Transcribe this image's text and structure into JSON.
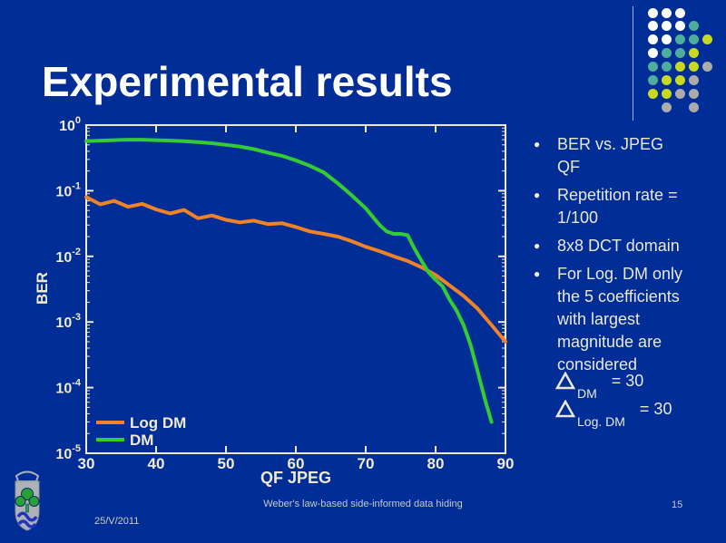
{
  "title": "Experimental results",
  "decoration": {
    "grid": [
      "WWW..",
      "WWWT.",
      "WWTTY",
      "WTTY.",
      "TTYYG",
      "TYYG.",
      "YYGG.",
      ".G.G."
    ],
    "colors": {
      "W": "#FFFFFF",
      "T": "#4FAE9B",
      "Y": "#C7DA1F",
      "G": "#ABABAB"
    }
  },
  "bullets": {
    "marker": "●",
    "items": [
      {
        "text": "BER vs. JPEG\nQF"
      },
      {
        "text": "Repetition rate =\n1/100"
      },
      {
        "text": "8x8 DCT domain"
      },
      {
        "text": "For Log. DM only\nthe 5 coefficients\nwith largest\nmagnitude are\nconsidered"
      }
    ]
  },
  "formulas": [
    {
      "symbol": "delta-triangle",
      "subscript": "DM",
      "equals": "= 30"
    },
    {
      "symbol": "delta-triangle",
      "subscript": "Log. DM",
      "equals": "= 30"
    }
  ],
  "footer": {
    "date": "25/V/2011",
    "center_text": "Weber's law-based side-informed data hiding",
    "page": "15"
  },
  "colors": {
    "background": "#002D96",
    "title_text": "#FFFFFF",
    "axis_and_labels": "#EFEACD",
    "bullet_text": "#E9E7D6",
    "footer_text": "#C6CAC8",
    "series_log_dm": "#F08228",
    "series_dm": "#33CC33"
  },
  "chart_data": {
    "type": "line",
    "title": "",
    "xlabel": "QF JPEG",
    "ylabel": "BER",
    "xlim": [
      30,
      90
    ],
    "x_ticks": [
      30,
      40,
      50,
      60,
      70,
      80,
      90
    ],
    "y_scale": "log",
    "y_tick_exponents": [
      0,
      -1,
      -2,
      -3,
      -4,
      -5
    ],
    "ylim": [
      1e-05,
      1
    ],
    "grid": false,
    "legend_position": "bottom-left",
    "series": [
      {
        "name": "Log DM",
        "color": "#F08228",
        "x": [
          30,
          32,
          34,
          36,
          38,
          40,
          42,
          44,
          46,
          48,
          50,
          52,
          54,
          56,
          58,
          60,
          62,
          64,
          66,
          68,
          70,
          72,
          74,
          76,
          78,
          80,
          82,
          84,
          86,
          88,
          90
        ],
        "y": [
          0.08,
          0.062,
          0.07,
          0.057,
          0.063,
          0.052,
          0.045,
          0.051,
          0.038,
          0.042,
          0.036,
          0.033,
          0.035,
          0.031,
          0.032,
          0.028,
          0.024,
          0.022,
          0.02,
          0.017,
          0.014,
          0.012,
          0.01,
          0.0085,
          0.0068,
          0.0052,
          0.0036,
          0.0025,
          0.0016,
          0.0009,
          0.0005
        ]
      },
      {
        "name": "DM",
        "color": "#33CC33",
        "x": [
          30,
          32,
          34,
          36,
          38,
          40,
          42,
          44,
          46,
          48,
          50,
          52,
          54,
          56,
          58,
          60,
          62,
          64,
          66,
          68,
          70,
          72,
          73,
          74,
          75,
          76,
          77,
          78,
          79,
          80,
          81,
          82,
          83,
          84,
          85,
          86,
          87,
          88
        ],
        "y": [
          0.57,
          0.58,
          0.59,
          0.6,
          0.6,
          0.59,
          0.58,
          0.57,
          0.55,
          0.53,
          0.5,
          0.47,
          0.43,
          0.38,
          0.34,
          0.29,
          0.24,
          0.19,
          0.13,
          0.085,
          0.054,
          0.03,
          0.024,
          0.022,
          0.022,
          0.021,
          0.013,
          0.0085,
          0.0057,
          0.0044,
          0.0035,
          0.0022,
          0.0015,
          0.0009,
          0.00045,
          0.00018,
          7e-05,
          3e-05
        ]
      }
    ]
  }
}
